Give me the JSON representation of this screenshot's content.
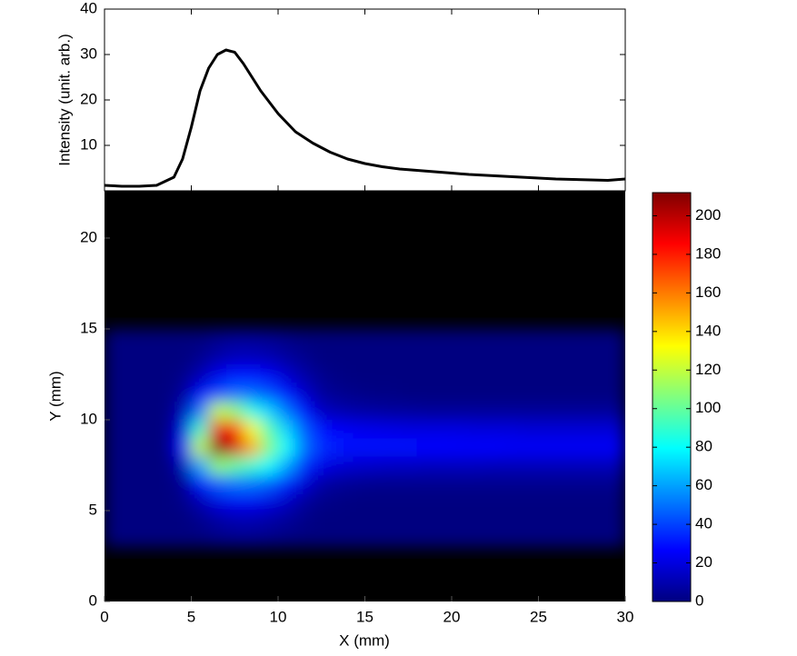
{
  "chart_data": [
    {
      "type": "line",
      "ylabel": "Intensity (unit. arb.)",
      "color": "#000000",
      "x": [
        0,
        1,
        2,
        3,
        4,
        4.5,
        5,
        5.5,
        6,
        6.5,
        7,
        7.5,
        8,
        9,
        10,
        11,
        12,
        13,
        14,
        15,
        16,
        17,
        18,
        19,
        20,
        21,
        22,
        23,
        24,
        25,
        26,
        27,
        28,
        29,
        30
      ],
      "values": [
        1.2,
        1.0,
        1.0,
        1.2,
        3,
        7,
        14,
        22,
        27,
        30,
        31,
        30.5,
        28,
        22,
        17,
        13,
        10.5,
        8.5,
        7,
        6,
        5.3,
        4.8,
        4.5,
        4.2,
        3.9,
        3.6,
        3.4,
        3.2,
        3.0,
        2.8,
        2.6,
        2.5,
        2.4,
        2.3,
        2.6
      ],
      "xlim": [
        0,
        30
      ],
      "xticks": [
        0,
        5,
        10,
        15,
        20,
        25,
        30
      ],
      "ylim": [
        0,
        40
      ],
      "yticks": [
        10,
        20,
        30,
        40
      ]
    },
    {
      "type": "heatmap",
      "xlabel": "X (mm)",
      "ylabel": "Y (mm)",
      "colormap": "jet",
      "xbins": [
        0,
        1,
        2,
        3,
        4,
        5,
        6,
        7,
        8,
        9,
        10,
        11,
        12,
        13,
        14,
        15,
        16,
        17,
        18,
        19,
        20,
        21,
        22,
        23,
        24,
        25,
        26,
        27,
        28,
        29,
        30
      ],
      "ybins": [
        3,
        4,
        5,
        6,
        7,
        8,
        9,
        10,
        11,
        12,
        13,
        14,
        15
      ],
      "z": [
        [
          0,
          0,
          0,
          0,
          0,
          0,
          2,
          3,
          3,
          2,
          1,
          0,
          0,
          0,
          0,
          0,
          0,
          0,
          0,
          0,
          0,
          0,
          0,
          0,
          0,
          0,
          0,
          0,
          0,
          0
        ],
        [
          0,
          0,
          0,
          0,
          0,
          3,
          7,
          10,
          10,
          8,
          5,
          2,
          0,
          0,
          0,
          0,
          0,
          0,
          0,
          0,
          0,
          0,
          0,
          0,
          0,
          0,
          0,
          0,
          0,
          0
        ],
        [
          0,
          0,
          0,
          0,
          2,
          10,
          20,
          24,
          24,
          20,
          14,
          6,
          2,
          1,
          0,
          0,
          0,
          0,
          0,
          0,
          0,
          0,
          0,
          0,
          0,
          0,
          0,
          0,
          0,
          0
        ],
        [
          0,
          0,
          0,
          0,
          4,
          28,
          45,
          50,
          50,
          45,
          32,
          18,
          8,
          5,
          4,
          3,
          3,
          3,
          3,
          3,
          3,
          3,
          3,
          3,
          3,
          3,
          3,
          3,
          3,
          3
        ],
        [
          0,
          0,
          0,
          0,
          12,
          60,
          110,
          100,
          90,
          80,
          60,
          35,
          22,
          18,
          16,
          15,
          14,
          14,
          13,
          13,
          13,
          13,
          12,
          12,
          12,
          12,
          12,
          12,
          12,
          12
        ],
        [
          0,
          0,
          0,
          0,
          25,
          120,
          212,
          195,
          150,
          105,
          80,
          50,
          35,
          32,
          30,
          29,
          28,
          28,
          27,
          27,
          26,
          26,
          26,
          25,
          25,
          25,
          25,
          25,
          25,
          25
        ],
        [
          0,
          0,
          0,
          0,
          20,
          90,
          190,
          180,
          130,
          95,
          70,
          45,
          30,
          25,
          23,
          22,
          21,
          20,
          20,
          20,
          20,
          19,
          19,
          19,
          18,
          18,
          18,
          18,
          18,
          18
        ],
        [
          0,
          0,
          0,
          0,
          12,
          50,
          120,
          110,
          85,
          70,
          50,
          28,
          14,
          10,
          8,
          7,
          6,
          6,
          5,
          5,
          5,
          5,
          5,
          5,
          5,
          5,
          5,
          5,
          5,
          5
        ],
        [
          0,
          0,
          0,
          0,
          5,
          25,
          40,
          48,
          48,
          42,
          30,
          16,
          6,
          3,
          2,
          1,
          1,
          0,
          0,
          0,
          0,
          0,
          0,
          0,
          0,
          0,
          0,
          0,
          0,
          0
        ],
        [
          0,
          0,
          0,
          0,
          2,
          10,
          22,
          28,
          28,
          24,
          16,
          8,
          3,
          1,
          0,
          0,
          0,
          0,
          0,
          0,
          0,
          0,
          0,
          0,
          0,
          0,
          0,
          0,
          0,
          0
        ],
        [
          0,
          0,
          0,
          0,
          0,
          3,
          8,
          12,
          12,
          10,
          6,
          3,
          0,
          0,
          0,
          0,
          0,
          0,
          0,
          0,
          0,
          0,
          0,
          0,
          0,
          0,
          0,
          0,
          0,
          0
        ],
        [
          0,
          0,
          0,
          0,
          0,
          0,
          3,
          5,
          5,
          4,
          2,
          0,
          0,
          0,
          0,
          0,
          0,
          0,
          0,
          0,
          0,
          0,
          0,
          0,
          0,
          0,
          0,
          0,
          0,
          0
        ]
      ],
      "xlim": [
        0,
        30
      ],
      "xticks": [
        0,
        5,
        10,
        15,
        20,
        25,
        30
      ],
      "ylim": [
        0,
        22.6
      ],
      "yticks": [
        0,
        5,
        10,
        15,
        20
      ],
      "clim": [
        0,
        212
      ],
      "cticks": [
        0,
        20,
        40,
        60,
        80,
        100,
        120,
        140,
        160,
        180,
        200
      ]
    }
  ]
}
